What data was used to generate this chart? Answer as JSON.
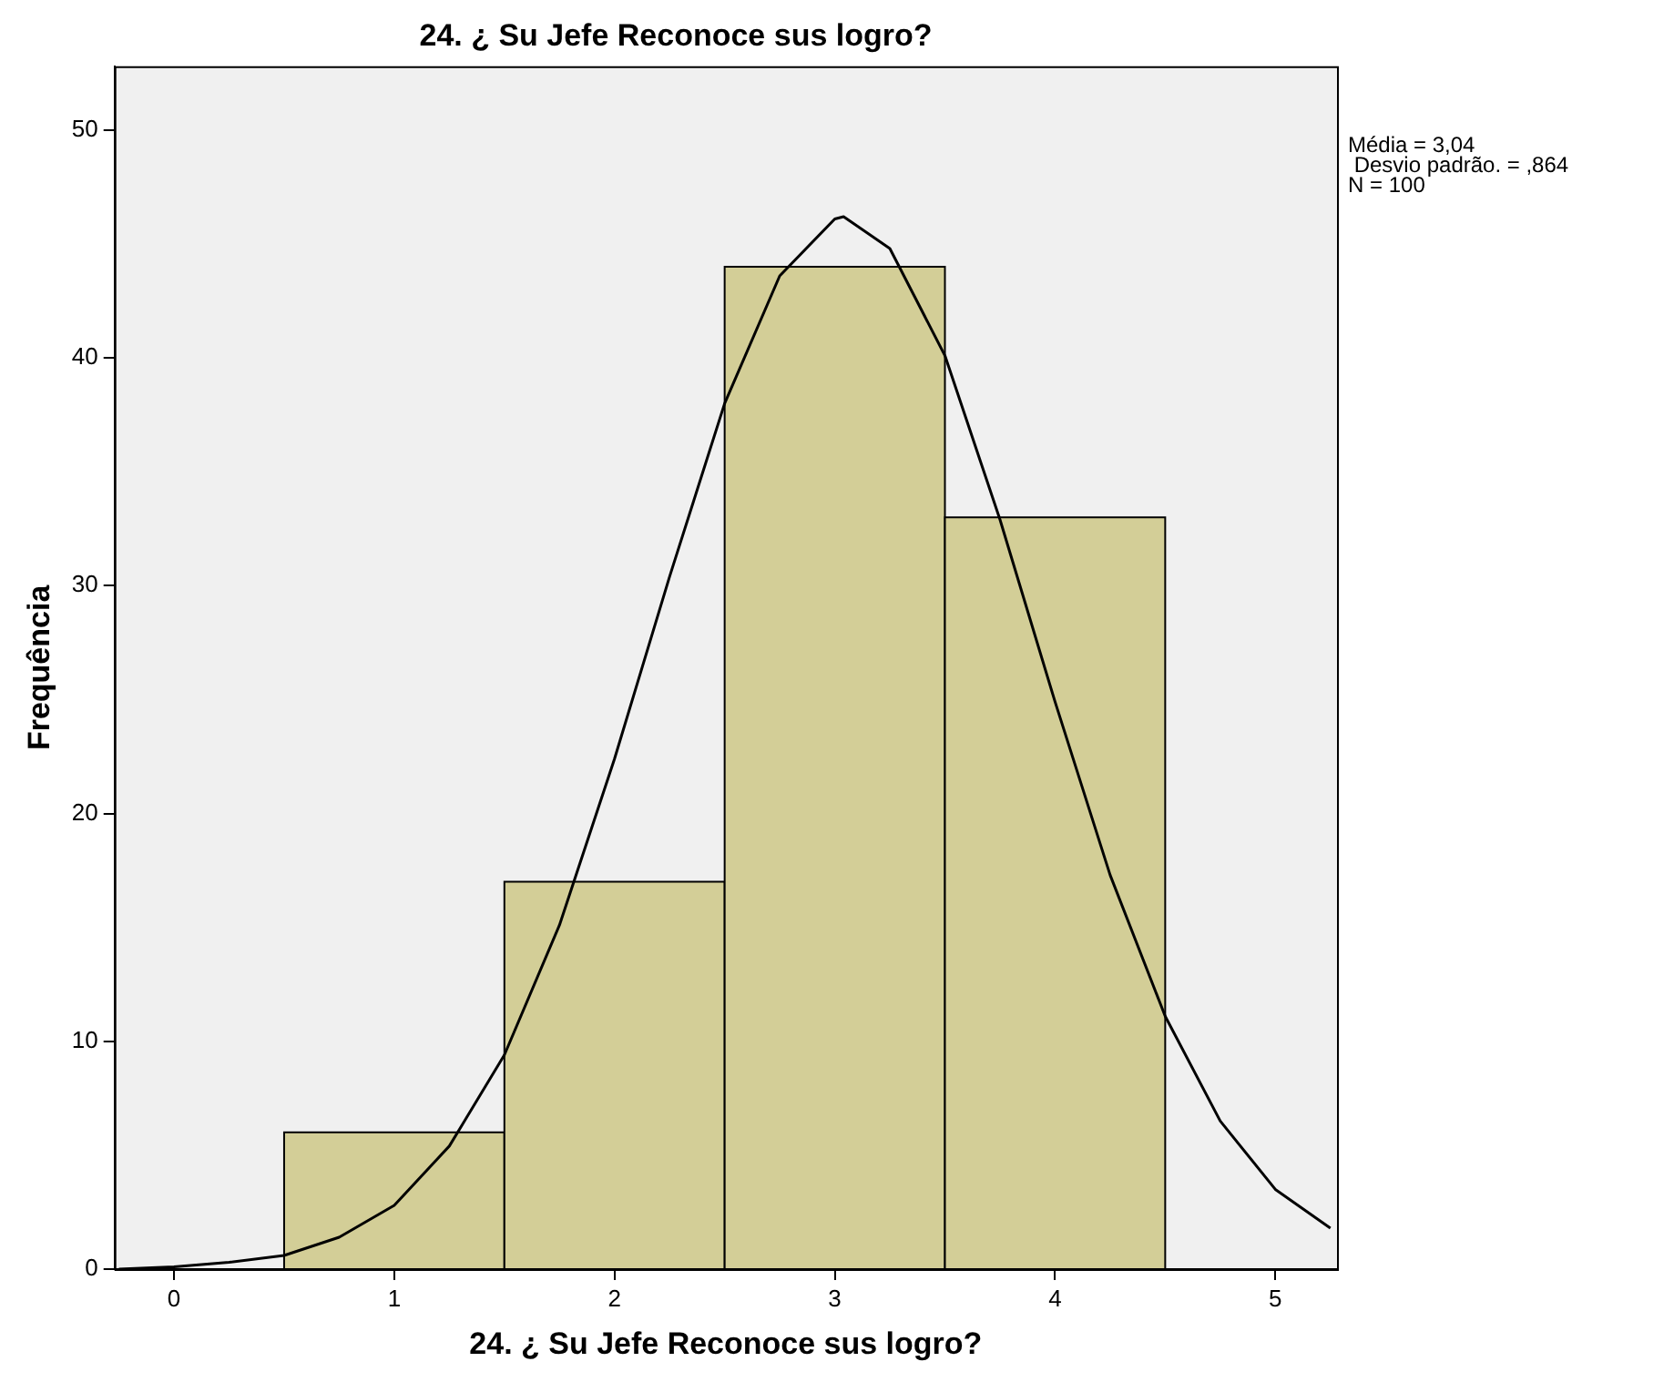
{
  "chart_data": {
    "type": "histogram",
    "title": "24. ¿ Su Jefe Reconoce sus logro?",
    "xlabel": "24. ¿ Su Jefe Reconoce sus logro?",
    "ylabel": "Frequência",
    "bins": [
      0.5,
      1.5,
      2.5,
      3.5,
      4.5
    ],
    "values": [
      6,
      17,
      44,
      33
    ],
    "color": "#d3ce97",
    "series": [
      {
        "type": "line",
        "color": "#000000",
        "x": [
          -0.25,
          0,
          0.25,
          0.5,
          0.75,
          1,
          1.25,
          1.5,
          1.75,
          2,
          2.25,
          2.5,
          2.75,
          3,
          3.04,
          3.25,
          3.5,
          3.75,
          4,
          4.25,
          4.5,
          4.75,
          5,
          5.25
        ],
        "values": [
          0.0,
          0.1,
          0.3,
          0.6,
          1.4,
          2.8,
          5.4,
          9.4,
          15.1,
          22.4,
          30.4,
          38.0,
          43.6,
          46.1,
          46.2,
          44.8,
          40.1,
          32.9,
          24.9,
          17.3,
          11.1,
          6.5,
          3.5,
          1.8
        ]
      }
    ],
    "annotations": [
      "Média = 3,04",
      " Desvio padrão. = ,864",
      "N = 100"
    ],
    "xlim": [
      -0.27,
      5.28
    ],
    "ylim": [
      0,
      52.8
    ],
    "xticks": [
      0,
      1,
      2,
      3,
      4,
      5
    ],
    "yticks": [
      0,
      10,
      20,
      30,
      40,
      50
    ],
    "grid": false,
    "legend": false,
    "marker": "none"
  }
}
